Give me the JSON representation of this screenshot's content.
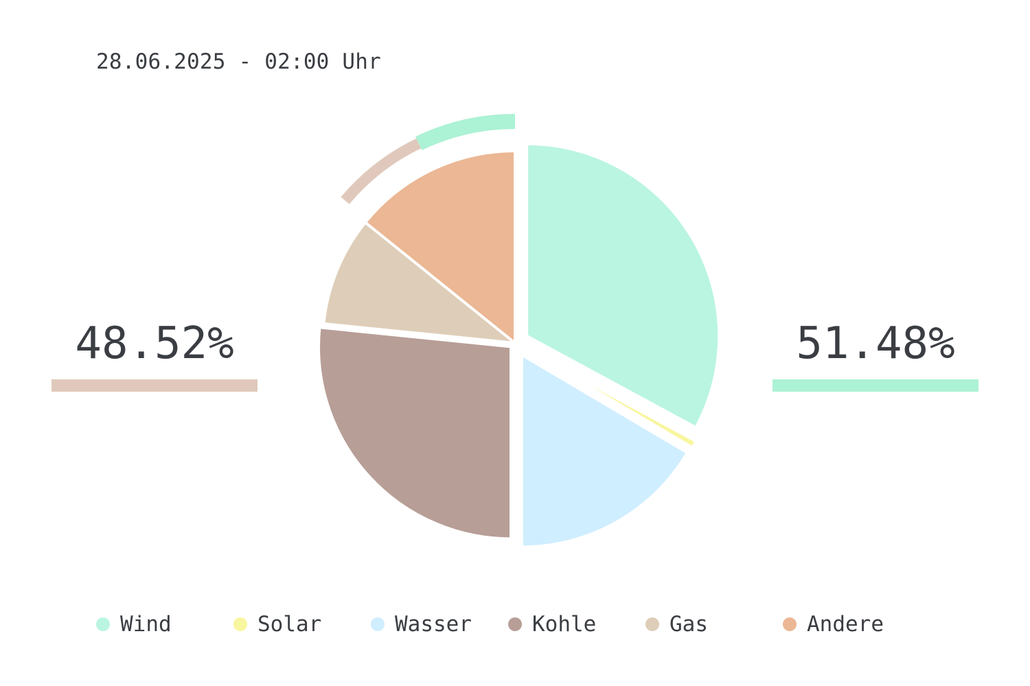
{
  "timestamp": "28.06.2025 - 02:00 Uhr",
  "shares": {
    "left": {
      "value": "48.52%",
      "color": "#e0c9bc",
      "fraction": 0.4852
    },
    "right": {
      "value": "51.48%",
      "color": "#acf2d4",
      "fraction": 0.5148
    }
  },
  "chart_data": {
    "type": "pie",
    "categories": [
      "Wind",
      "Solar",
      "Wasser",
      "Kohle",
      "Gas",
      "Andere"
    ],
    "values": [
      32.9,
      0.6,
      16.5,
      26.6,
      9.2,
      14.2
    ],
    "colors": [
      "#baf5e1",
      "#f8f69e",
      "#cfeeff",
      "#b79e96",
      "#decdb8",
      "#ebb794"
    ],
    "outer_ring": {
      "segments": [
        {
          "color": "#acf2d4",
          "fraction": 0.5148
        },
        {
          "color": "#e0c9bc",
          "fraction": 0.4852
        }
      ]
    },
    "legend_position": "bottom"
  }
}
